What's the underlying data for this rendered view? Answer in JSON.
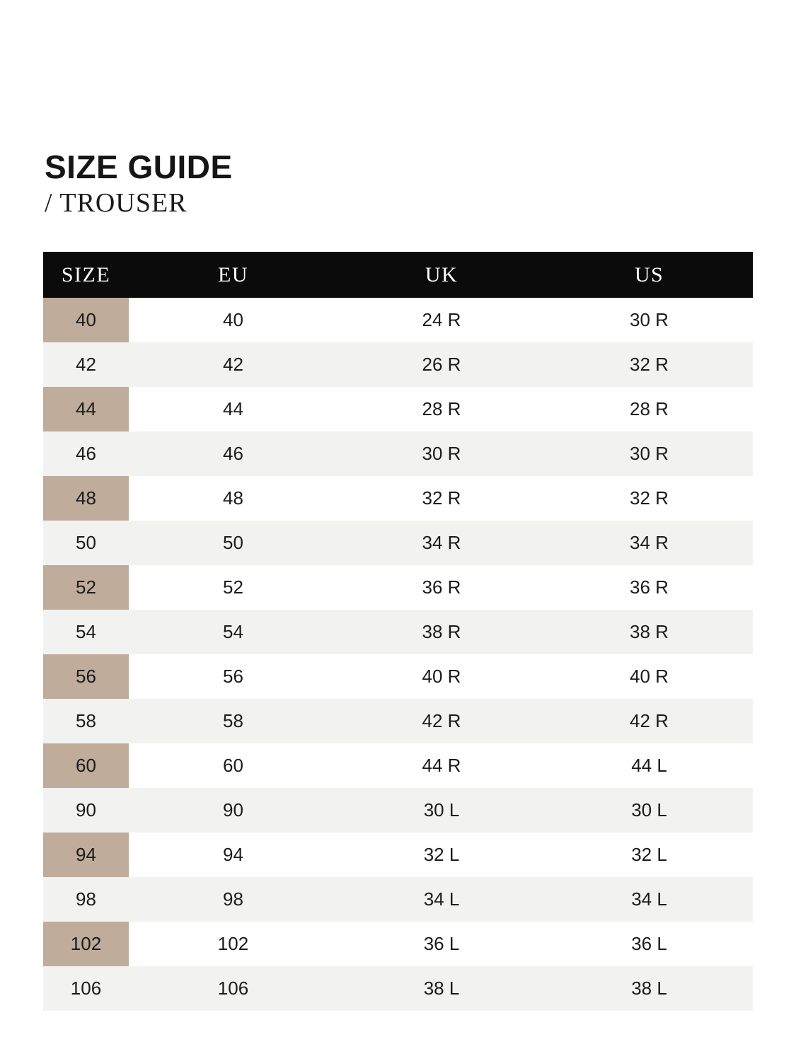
{
  "page": {
    "title": "SIZE GUIDE",
    "subtitle": "/ TROUSER"
  },
  "table": {
    "columns": [
      "SIZE",
      "EU",
      "UK",
      "US"
    ],
    "rows": [
      [
        "40",
        "40",
        "24 R",
        "30 R"
      ],
      [
        "42",
        "42",
        "26 R",
        "32 R"
      ],
      [
        "44",
        "44",
        "28 R",
        "28 R"
      ],
      [
        "46",
        "46",
        "30 R",
        "30 R"
      ],
      [
        "48",
        "48",
        "32 R",
        "32 R"
      ],
      [
        "50",
        "50",
        "34 R",
        "34 R"
      ],
      [
        "52",
        "52",
        "36 R",
        "36 R"
      ],
      [
        "54",
        "54",
        "38 R",
        "38 R"
      ],
      [
        "56",
        "56",
        "40 R",
        "40 R"
      ],
      [
        "58",
        "58",
        "42 R",
        "42 R"
      ],
      [
        "60",
        "60",
        "44 R",
        "44 L"
      ],
      [
        "90",
        "90",
        "30 L",
        "30 L"
      ],
      [
        "94",
        "94",
        "32 L",
        "32 L"
      ],
      [
        "98",
        "98",
        "34 L",
        "34 L"
      ],
      [
        "102",
        "102",
        "36 L",
        "36 L"
      ],
      [
        "106",
        "106",
        "38 L",
        "38 L"
      ]
    ]
  },
  "colors": {
    "page_bg": "#ffffff",
    "header_bg": "#0b0b0b",
    "header_text": "#ffffff",
    "size_column_bg": "#bfac9b",
    "stripe_bg": "#f2f2f1",
    "body_text": "#1b1b1b",
    "title_text": "#161616"
  }
}
